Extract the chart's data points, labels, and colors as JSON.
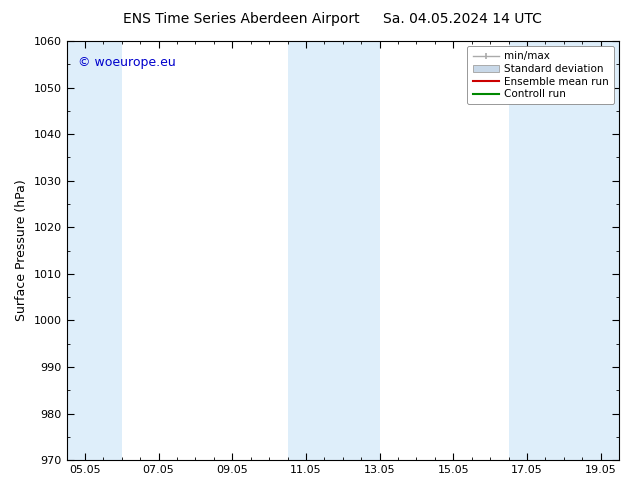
{
  "title_left": "ENS Time Series Aberdeen Airport",
  "title_right": "Sa. 04.05.2024 14 UTC",
  "ylabel": "Surface Pressure (hPa)",
  "ylim": [
    970,
    1060
  ],
  "yticks": [
    970,
    980,
    990,
    1000,
    1010,
    1020,
    1030,
    1040,
    1050,
    1060
  ],
  "xlim": [
    0,
    15
  ],
  "xtick_labels": [
    "05.05",
    "07.05",
    "09.05",
    "11.05",
    "13.05",
    "15.05",
    "17.05",
    "19.05"
  ],
  "xtick_positions": [
    0.5,
    2.5,
    4.5,
    6.5,
    8.5,
    10.5,
    12.5,
    14.5
  ],
  "watermark": "© woeurope.eu",
  "shaded_bands": [
    {
      "x_start": 0.0,
      "x_end": 1.5,
      "color": "#d0e8f8",
      "alpha": 0.7
    },
    {
      "x_start": 6.0,
      "x_end": 8.5,
      "color": "#d0e8f8",
      "alpha": 0.7
    },
    {
      "x_start": 12.0,
      "x_end": 15.0,
      "color": "#d0e8f8",
      "alpha": 0.7
    }
  ],
  "legend_entries": [
    {
      "label": "min/max",
      "color": "#aaaaaa",
      "type": "errorbar"
    },
    {
      "label": "Standard deviation",
      "color": "#c8d8e8",
      "type": "fill"
    },
    {
      "label": "Ensemble mean run",
      "color": "#cc0000",
      "type": "line"
    },
    {
      "label": "Controll run",
      "color": "#008800",
      "type": "line"
    }
  ],
  "bg_color": "#ffffff",
  "plot_bg_color": "#ffffff",
  "border_color": "#000000",
  "title_fontsize": 10,
  "tick_fontsize": 8,
  "ylabel_fontsize": 9,
  "watermark_color": "#0000cc",
  "watermark_fontsize": 9,
  "legend_fontsize": 7.5
}
